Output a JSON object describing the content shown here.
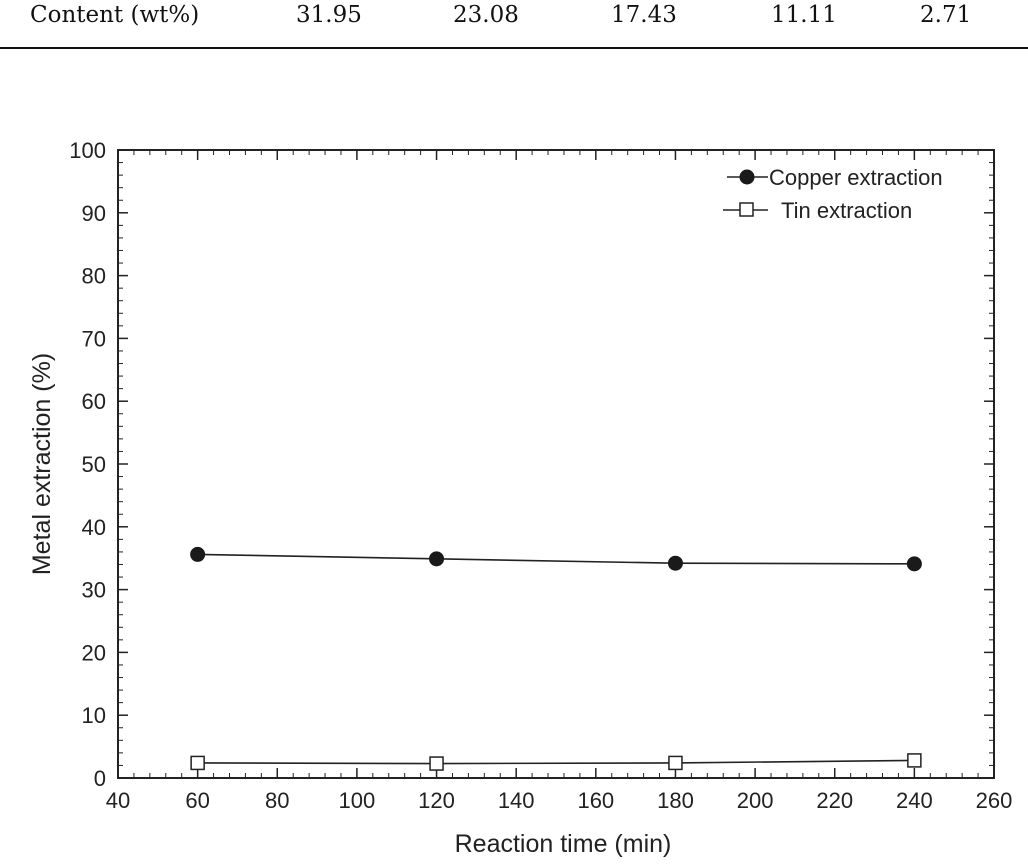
{
  "table_row": {
    "label": "Content (wt%)",
    "values": [
      "31.95",
      "23.08",
      "17.43",
      "11.11",
      "2.71"
    ]
  },
  "chart_data": {
    "type": "line",
    "title": "",
    "xlabel": "Reaction time (min)",
    "ylabel": "Metal extraction (%)",
    "xlim": [
      40,
      260
    ],
    "ylim": [
      0,
      100
    ],
    "xticks": [
      40,
      60,
      80,
      100,
      120,
      140,
      160,
      180,
      200,
      220,
      240,
      260
    ],
    "yticks": [
      0,
      10,
      20,
      30,
      40,
      50,
      60,
      70,
      80,
      90,
      100
    ],
    "grid": false,
    "legend_position": "top-right",
    "series": [
      {
        "name": "Copper extraction",
        "marker": "filled-circle",
        "x": [
          60,
          120,
          180,
          240
        ],
        "y": [
          35.6,
          34.9,
          34.2,
          34.1
        ]
      },
      {
        "name": "Tin extraction",
        "marker": "open-square",
        "x": [
          60,
          120,
          180,
          240
        ],
        "y": [
          2.4,
          2.3,
          2.4,
          2.8
        ]
      }
    ]
  }
}
